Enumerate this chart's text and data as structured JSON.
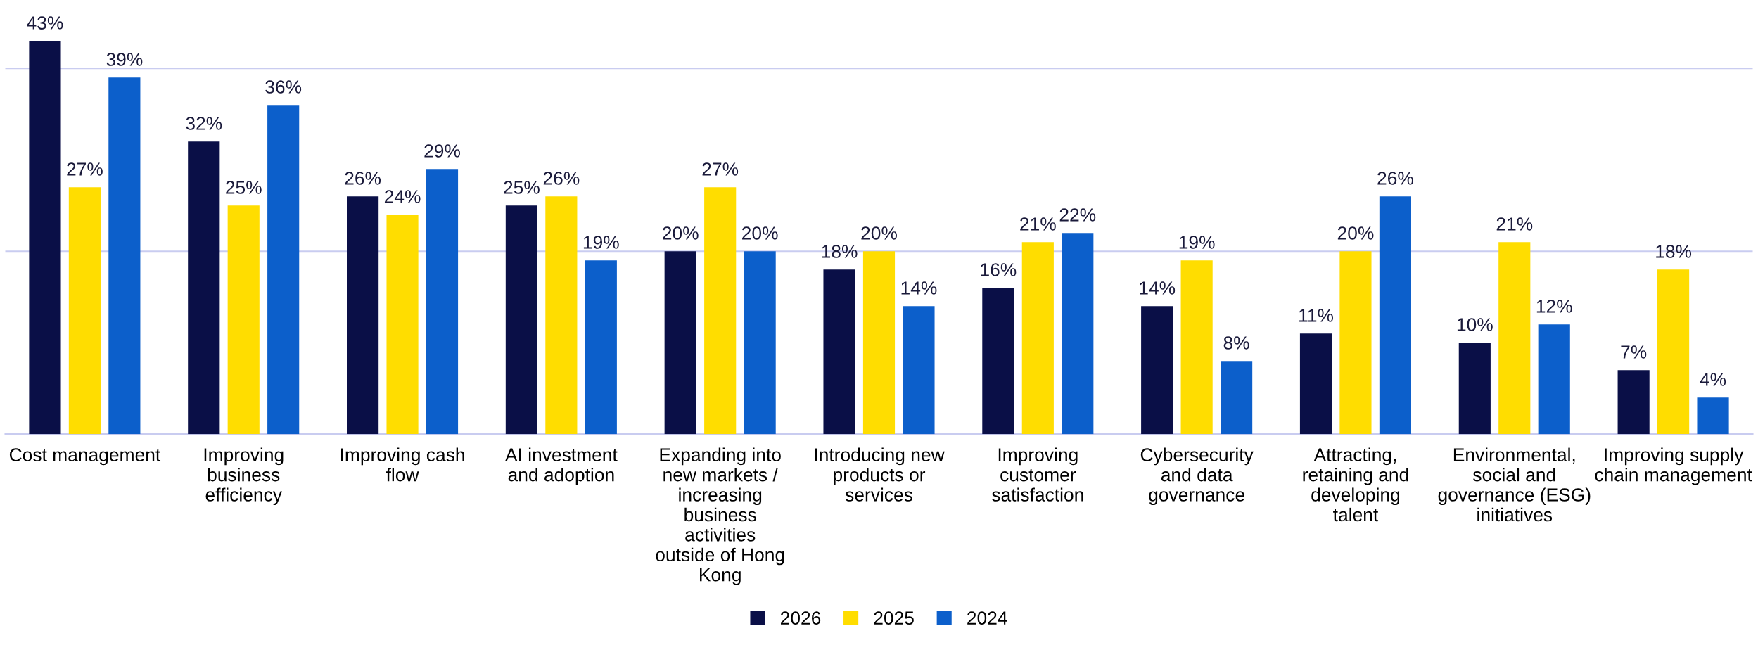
{
  "chart_data": {
    "type": "bar",
    "categories": [
      "Cost management",
      "Improving business efficiency",
      "Improving cash flow",
      "AI investment and adoption",
      "Expanding into new markets / increasing business activities outside of Hong Kong",
      "Introducing new products or services",
      "Improving customer satisfaction",
      "Cybersecurity and data governance",
      "Attracting, retaining and developing talent",
      "Environmental, social and governance (ESG) initiatives",
      "Improving supply chain management"
    ],
    "series": [
      {
        "name": "2026",
        "color": "#0a0f47",
        "values": [
          43,
          32,
          26,
          25,
          20,
          18,
          16,
          14,
          11,
          10,
          7
        ],
        "value_labels": [
          "43%",
          "32%",
          "26%",
          "25%",
          "20%",
          "18%",
          "16%",
          "14%",
          "11%",
          "10%",
          "7%"
        ]
      },
      {
        "name": "2025",
        "color": "#ffdd00",
        "values": [
          27,
          25,
          24,
          26,
          27,
          20,
          21,
          19,
          20,
          21,
          18
        ],
        "value_labels": [
          "27%",
          "25%",
          "24%",
          "26%",
          "27%",
          "20%",
          "21%",
          "19%",
          "20%",
          "21%",
          "18%"
        ]
      },
      {
        "name": "2024",
        "color": "#0c5fcb",
        "values": [
          39,
          36,
          29,
          19,
          20,
          14,
          22,
          8,
          26,
          12,
          4
        ],
        "value_labels": [
          "39%",
          "36%",
          "29%",
          "19%",
          "20%",
          "14%",
          "22%",
          "8%",
          "26%",
          "12%",
          "4%"
        ]
      }
    ],
    "tick_labels": "x",
    "ref_lines": [
      {
        "axis": "y",
        "value": 20,
        "color": "#c9ccf0"
      },
      {
        "axis": "y",
        "value": 40,
        "color": "#c9ccf0"
      }
    ],
    "legend": "bottom"
  }
}
